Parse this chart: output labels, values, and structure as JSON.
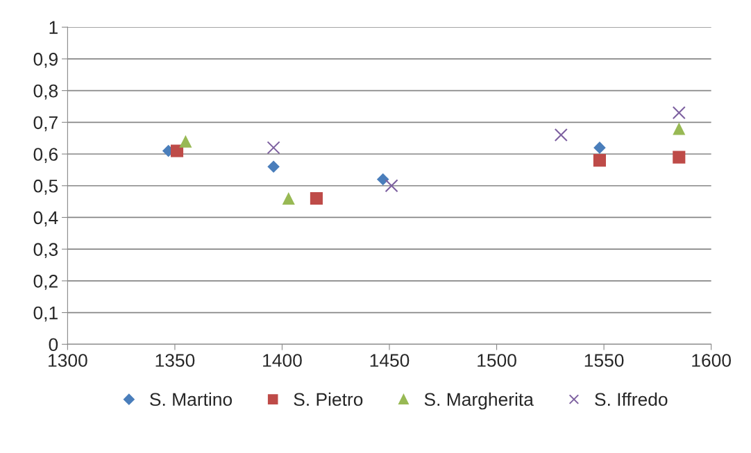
{
  "chart_data": {
    "type": "scatter",
    "xlim": [
      1300,
      1600
    ],
    "xticks": [
      1300,
      1350,
      1400,
      1450,
      1500,
      1550,
      1600
    ],
    "ylim": [
      0,
      1
    ],
    "yticks": [
      0,
      {
        "value": 0.1,
        "label": "0,1"
      },
      {
        "value": 0.2,
        "label": "0,2"
      },
      {
        "value": 0.3,
        "label": "0,3"
      },
      {
        "value": 0.4,
        "label": "0,4"
      },
      {
        "value": 0.5,
        "label": "0,5"
      },
      {
        "value": 0.6,
        "label": "0,6"
      },
      {
        "value": 0.7,
        "label": "0,7"
      },
      {
        "value": 0.8,
        "label": "0,8"
      },
      {
        "value": 0.9,
        "label": "0,9"
      },
      1
    ],
    "grid": "y",
    "legend": "bottom",
    "series": [
      {
        "name": "S. Martino",
        "color": "#4a7ebb",
        "marker": "diamond",
        "x": [
          1347,
          1396,
          1447,
          1548
        ],
        "values": [
          0.61,
          0.56,
          0.52,
          0.62
        ]
      },
      {
        "name": "S. Pietro",
        "color": "#be4b48",
        "marker": "square",
        "x": [
          1351,
          1416,
          1548,
          1585
        ],
        "values": [
          0.61,
          0.46,
          0.58,
          0.59
        ]
      },
      {
        "name": "S. Margherita",
        "color": "#98b954",
        "marker": "triangle",
        "x": [
          1355,
          1403,
          1585
        ],
        "values": [
          0.64,
          0.46,
          0.68
        ]
      },
      {
        "name": "S. Iffredo",
        "color": "#7d60a0",
        "marker": "cross",
        "x": [
          1396,
          1451,
          1530,
          1585
        ],
        "values": [
          0.62,
          0.5,
          0.66,
          0.73
        ]
      }
    ]
  }
}
